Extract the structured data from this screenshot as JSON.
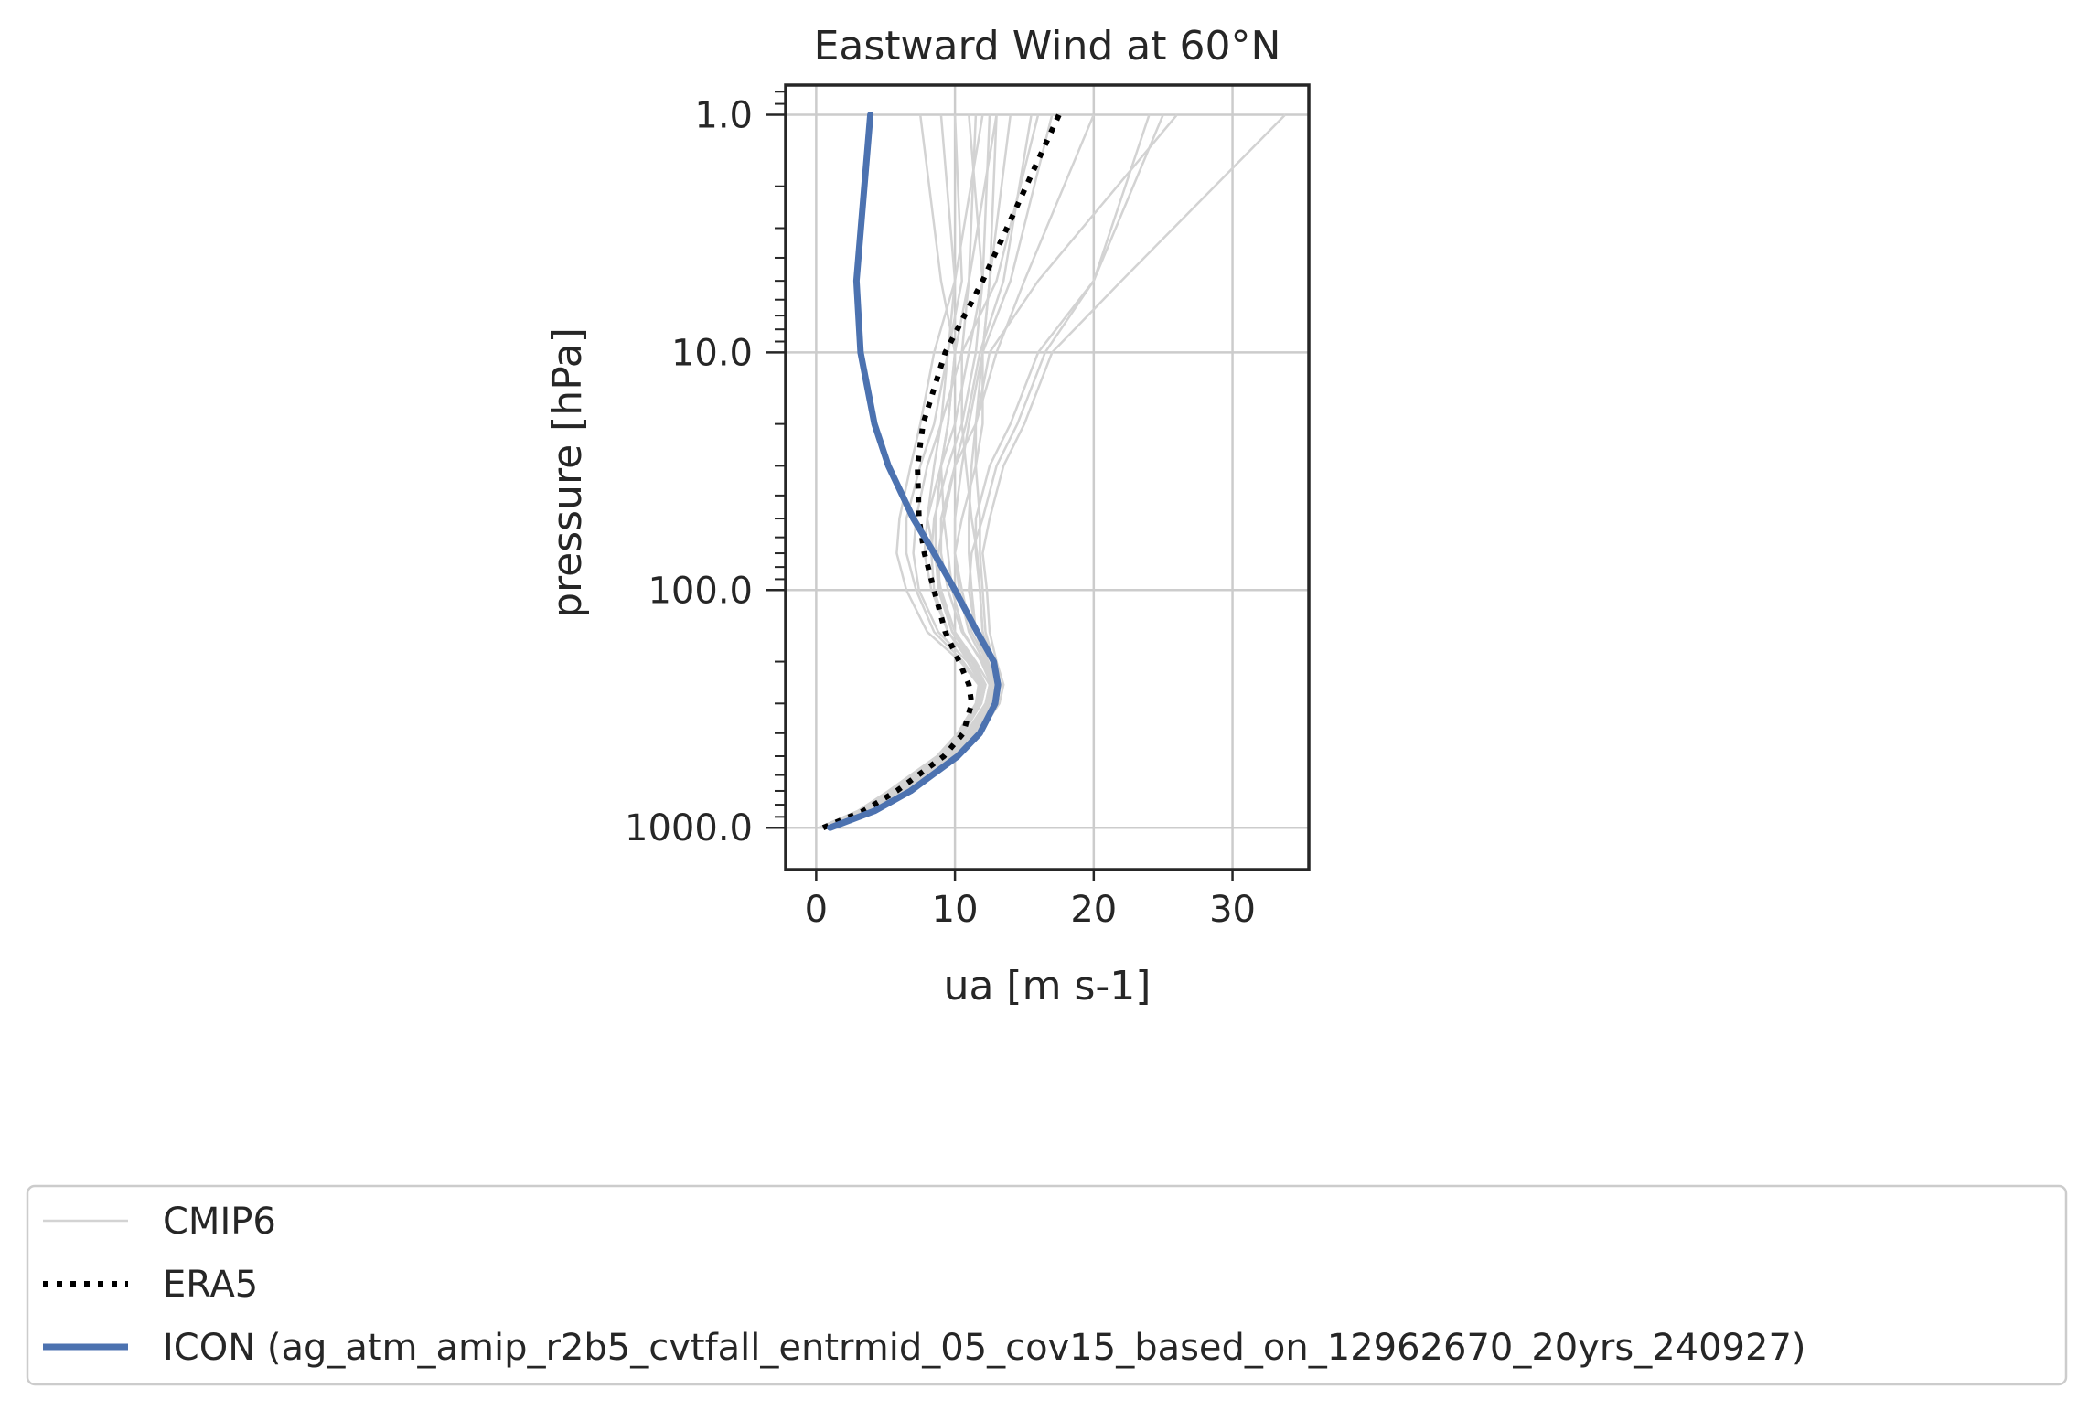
{
  "chart_data": {
    "type": "line",
    "title": "Eastward Wind at 60°N",
    "xlabel": "ua [m s-1]",
    "ylabel": "pressure [hPa]",
    "xlim": [
      -2.2,
      35.5
    ],
    "ylim": [
      1500,
      0.75
    ],
    "yscale": "log",
    "y_inverted": true,
    "xticks": [
      0,
      10,
      20,
      30
    ],
    "xtick_labels": [
      "0",
      "10",
      "20",
      "30"
    ],
    "yticks": [
      1,
      10,
      100,
      1000
    ],
    "ytick_labels": [
      "1.0",
      "10.0",
      "100.0",
      "1000.0"
    ],
    "grid": true,
    "legend_position": "below",
    "pressure_levels": [
      1000,
      850,
      700,
      500,
      400,
      300,
      250,
      200,
      150,
      100,
      70,
      50,
      30,
      20,
      10,
      5,
      1
    ],
    "series": [
      {
        "name": "CMIP6",
        "color": "#d3d3d3",
        "style": "solid",
        "members": [
          [
            0.2,
            3.2,
            5.5,
            9.0,
            10.5,
            11.8,
            12.0,
            11.0,
            9.5,
            8.5,
            8.3,
            8.5,
            9.5,
            10.5,
            11.5,
            12.0,
            11.0
          ],
          [
            0.5,
            3.5,
            6.0,
            9.5,
            11.0,
            12.5,
            12.8,
            12.0,
            10.5,
            9.5,
            9.0,
            9.0,
            10.0,
            11.5,
            13.0,
            15.0,
            20.0
          ],
          [
            0.3,
            3.4,
            5.8,
            9.2,
            10.8,
            12.2,
            12.5,
            11.5,
            10.0,
            9.0,
            8.5,
            8.0,
            8.5,
            9.0,
            9.5,
            10.0,
            9.0
          ],
          [
            0.8,
            4.0,
            6.5,
            10.2,
            11.8,
            13.2,
            13.5,
            13.0,
            12.5,
            12.3,
            12.0,
            12.5,
            13.5,
            15.0,
            17.0,
            22.0,
            33.8
          ],
          [
            0.6,
            3.8,
            6.2,
            9.8,
            11.4,
            12.8,
            13.1,
            12.6,
            12.0,
            11.8,
            11.5,
            11.5,
            12.5,
            14.0,
            16.0,
            20.0,
            25.0
          ],
          [
            0.4,
            3.3,
            5.6,
            9.1,
            10.6,
            11.9,
            12.2,
            11.3,
            9.8,
            8.8,
            8.6,
            8.6,
            9.0,
            9.5,
            10.0,
            11.0,
            13.0
          ],
          [
            0.7,
            3.9,
            6.3,
            10.0,
            11.6,
            13.0,
            13.3,
            12.8,
            12.2,
            12.0,
            11.8,
            11.8,
            11.5,
            11.5,
            12.5,
            16.0,
            26.0
          ],
          [
            0.2,
            3.1,
            5.3,
            8.8,
            10.3,
            11.6,
            11.8,
            10.6,
            8.5,
            7.2,
            6.5,
            6.5,
            7.5,
            8.5,
            9.5,
            10.5,
            10.0
          ],
          [
            0.5,
            3.6,
            6.0,
            9.6,
            11.2,
            12.6,
            12.9,
            12.3,
            11.2,
            10.5,
            10.0,
            10.0,
            10.5,
            11.0,
            12.0,
            14.0,
            17.0
          ],
          [
            0.3,
            3.2,
            5.4,
            8.9,
            10.4,
            11.7,
            11.9,
            10.9,
            8.8,
            7.4,
            7.0,
            7.2,
            8.0,
            9.0,
            10.5,
            13.0,
            16.0
          ],
          [
            0.6,
            3.7,
            6.1,
            9.7,
            11.3,
            12.7,
            13.0,
            12.4,
            11.5,
            11.0,
            11.2,
            12.0,
            13.0,
            14.5,
            16.5,
            20.0,
            24.0
          ],
          [
            0.4,
            3.4,
            5.7,
            9.3,
            10.9,
            12.3,
            12.6,
            11.9,
            10.6,
            9.8,
            9.5,
            9.2,
            9.0,
            9.5,
            10.0,
            9.0,
            7.5
          ],
          [
            0.5,
            3.5,
            5.9,
            9.4,
            11.0,
            12.4,
            12.7,
            12.1,
            11.0,
            10.3,
            10.0,
            10.5,
            11.5,
            12.0,
            12.0,
            12.5,
            14.0
          ],
          [
            0.2,
            3.0,
            5.2,
            8.7,
            10.2,
            11.5,
            11.7,
            10.4,
            8.0,
            6.5,
            5.8,
            6.0,
            6.8,
            7.5,
            8.5,
            10.0,
            12.0
          ],
          [
            0.6,
            3.6,
            6.0,
            9.5,
            11.1,
            12.5,
            12.8,
            12.2,
            11.5,
            11.2,
            11.0,
            11.0,
            11.2,
            11.5,
            12.0,
            12.5,
            13.0
          ],
          [
            0.4,
            3.3,
            5.6,
            9.0,
            10.6,
            11.9,
            12.2,
            11.4,
            9.8,
            8.9,
            8.8,
            9.2,
            10.0,
            10.8,
            11.8,
            13.5,
            15.5
          ],
          [
            0.7,
            3.8,
            6.2,
            9.9,
            11.5,
            12.9,
            13.2,
            12.7,
            12.0,
            11.8,
            11.6,
            11.2,
            10.8,
            10.5,
            10.5,
            11.0,
            11.5
          ],
          [
            0.3,
            3.2,
            5.5,
            9.0,
            10.5,
            11.8,
            12.1,
            11.2,
            9.5,
            8.3,
            7.8,
            8.0,
            9.0,
            10.0,
            11.0,
            12.0,
            12.5
          ]
        ]
      },
      {
        "name": "ERA5",
        "color": "#000000",
        "style": "dotted",
        "values": [
          0.5,
          3.4,
          5.8,
          9.2,
          10.6,
          11.2,
          11.0,
          10.3,
          9.3,
          8.5,
          7.8,
          7.4,
          7.3,
          7.7,
          9.3,
          12.0,
          17.5
        ]
      },
      {
        "name": "ICON (ag_atm_amip_r2b5_cvtfall_entrmid_05_cov15_based_on_12962670_20yrs_240927)",
        "color": "#4c72b0",
        "style": "solid",
        "values": [
          1.0,
          4.2,
          6.8,
          10.2,
          11.8,
          12.9,
          13.1,
          12.8,
          11.6,
          10.0,
          8.5,
          7.0,
          5.2,
          4.2,
          3.2,
          2.9,
          3.9
        ]
      }
    ]
  }
}
